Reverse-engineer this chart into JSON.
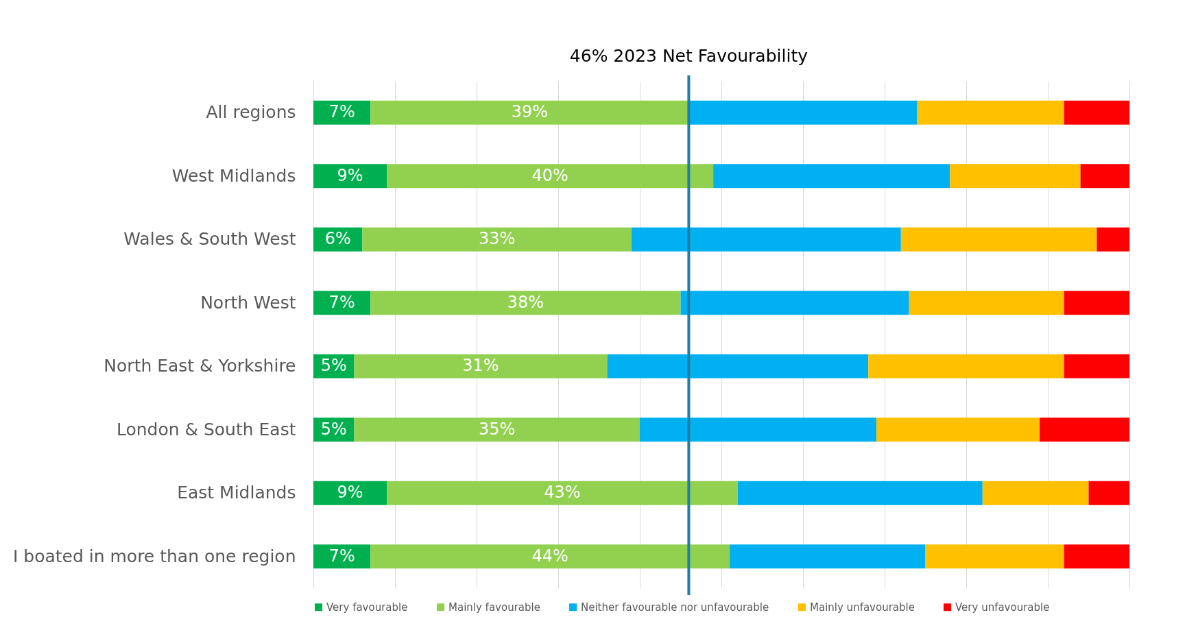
{
  "chart_data": {
    "type": "bar",
    "orientation": "horizontal",
    "stacked": true,
    "grid": "x",
    "legend": "bottom",
    "tick_labels": "y",
    "xlim": [
      0,
      100
    ],
    "xticks": [
      {
        "value": 0,
        "label": null
      },
      {
        "value": 10,
        "label": null
      },
      {
        "value": 20,
        "label": null
      },
      {
        "value": 30,
        "label": null
      },
      {
        "value": 40,
        "label": null
      },
      {
        "value": 50,
        "label": null
      },
      {
        "value": 60,
        "label": null
      },
      {
        "value": 70,
        "label": null
      },
      {
        "value": 80,
        "label": null
      },
      {
        "value": 90,
        "label": null
      },
      {
        "value": 100,
        "label": null
      }
    ],
    "categories": [
      "All regions",
      "West Midlands",
      "Wales & South West",
      "North West",
      "North East & Yorkshire",
      "London & South East",
      "East Midlands",
      "I boated in more than one region"
    ],
    "series": [
      {
        "name": "Very favourable",
        "color": "#00b050",
        "values": [
          7,
          9,
          6,
          7,
          5,
          5,
          9,
          7
        ],
        "value_labels": [
          "7%",
          "9%",
          "6%",
          "7%",
          "5%",
          "5%",
          "9%",
          "7%"
        ]
      },
      {
        "name": "Mainly favourable",
        "color": "#92d050",
        "values": [
          39,
          40,
          33,
          38,
          31,
          35,
          43,
          44
        ],
        "value_labels": [
          "39%",
          "40%",
          "33%",
          "38%",
          "31%",
          "35%",
          "43%",
          "44%"
        ]
      },
      {
        "name": "Neither favourable nor unfavourable",
        "color": "#00b0f0",
        "values": [
          28,
          29,
          33,
          28,
          32,
          29,
          30,
          24
        ]
      },
      {
        "name": "Mainly unfavourable",
        "color": "#ffc000",
        "values": [
          18,
          16,
          24,
          19,
          24,
          20,
          13,
          17
        ]
      },
      {
        "name": "Very unfavourable",
        "color": "#ff0000",
        "values": [
          8,
          6,
          4,
          8,
          8,
          11,
          5,
          8
        ]
      }
    ],
    "ref_lines": [
      {
        "axis": "x",
        "value": 46,
        "label": "46% 2023  Net Favourability",
        "color": "#1f7fa6"
      }
    ]
  }
}
